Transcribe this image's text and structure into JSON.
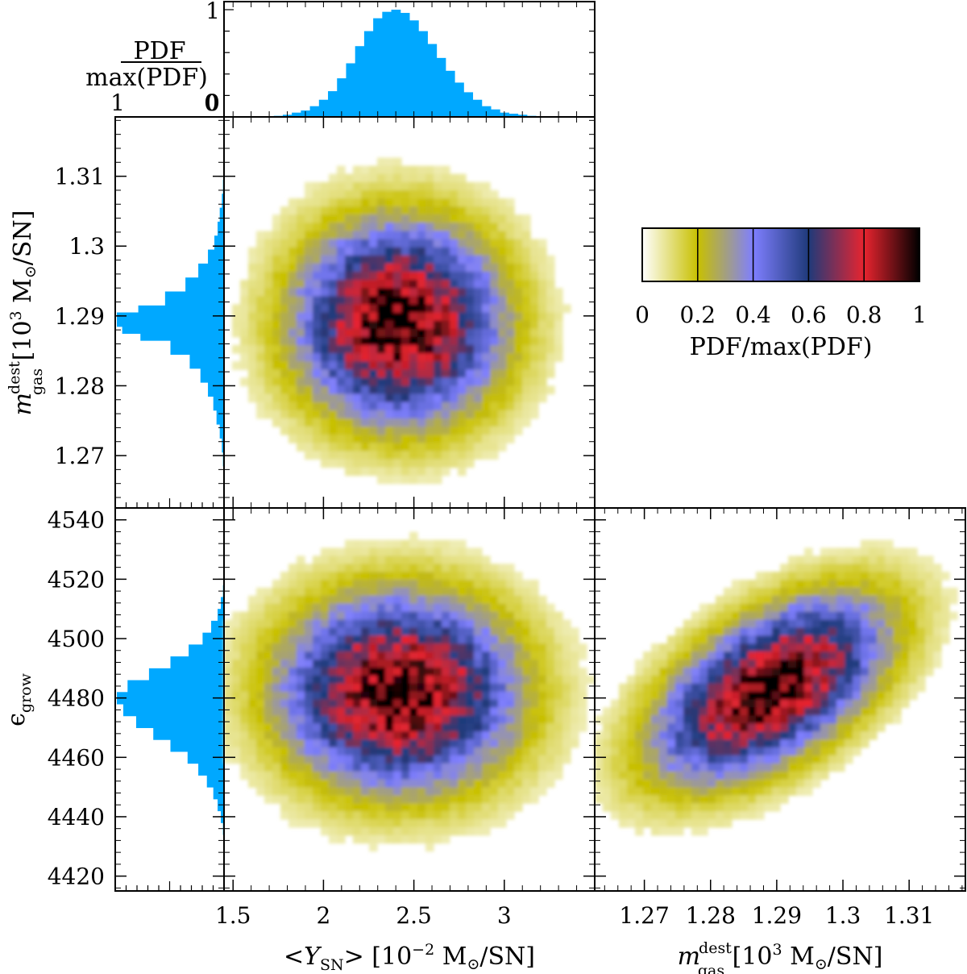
{
  "figure": {
    "colorbar": {
      "label": "PDF/max(PDF)",
      "ticks": [
        "0",
        "0.2",
        "0.4",
        "0.6",
        "0.8",
        "1"
      ],
      "stops": [
        "#ffffff",
        "#c8c000",
        "#7f7fff",
        "#1f3a7a",
        "#e8242f",
        "#000000"
      ]
    },
    "histogram_color": "#00a8ff",
    "labels": {
      "top_hist_y_num": "PDF",
      "top_hist_y_den": "max(PDF)",
      "top_hist_tick_1": "1",
      "top_hist_tick_0": "0",
      "top_hist_left_1": "1",
      "top_hist_left_0": "0",
      "mgas_axis_symbol": "m",
      "mgas_axis_sup": "dest",
      "mgas_axis_sub": "gas",
      "mgas_axis_units": " [10",
      "mgas_axis_units_sup": "3",
      "mgas_axis_units_tail": " M",
      "sun_symbol": "⊙",
      "per_sn": "/SN]",
      "eps_symbol": "ϵ",
      "eps_sub": "grow",
      "ysn_lt": "<",
      "ysn_symbol": "Y",
      "ysn_sub": "SN",
      "ysn_gt": ">",
      "ysn_units": " [10",
      "ysn_units_sup": "−2",
      "ysn_units_tail": " M"
    }
  },
  "chart_data": [
    {
      "type": "bar",
      "panel": "top-histogram",
      "variable": "<Y_SN>",
      "x_range": [
        1.45,
        3.5
      ],
      "ylim": [
        0,
        1
      ],
      "y_ticks": [
        "0",
        "1"
      ],
      "bin_centers": [
        1.75,
        1.8,
        1.85,
        1.9,
        1.95,
        2.0,
        2.05,
        2.1,
        2.15,
        2.2,
        2.25,
        2.3,
        2.35,
        2.4,
        2.45,
        2.5,
        2.55,
        2.6,
        2.65,
        2.7,
        2.75,
        2.8,
        2.85,
        2.9,
        2.95,
        3.0,
        3.05,
        3.1,
        3.15,
        3.2
      ],
      "values": [
        0.01,
        0.02,
        0.04,
        0.06,
        0.1,
        0.16,
        0.24,
        0.36,
        0.5,
        0.66,
        0.8,
        0.92,
        0.98,
        1.0,
        0.97,
        0.9,
        0.8,
        0.68,
        0.55,
        0.43,
        0.32,
        0.23,
        0.16,
        0.1,
        0.07,
        0.04,
        0.03,
        0.02,
        0.01,
        0.005
      ]
    },
    {
      "type": "bar",
      "panel": "left-histogram-mgas",
      "orientation": "horizontal",
      "variable": "m_gas^dest",
      "y_range": [
        1.2625,
        1.3185
      ],
      "x_reversed": true,
      "bin_centers": [
        1.2695,
        1.2715,
        1.2735,
        1.2755,
        1.2775,
        1.2795,
        1.2815,
        1.2835,
        1.2855,
        1.2875,
        1.2885,
        1.2895,
        1.2905,
        1.2925,
        1.2945,
        1.2965,
        1.2985,
        1.3005,
        1.3025,
        1.3045,
        1.3065,
        1.3085
      ],
      "values": [
        0.01,
        0.02,
        0.04,
        0.07,
        0.1,
        0.15,
        0.22,
        0.32,
        0.5,
        0.78,
        0.95,
        1.0,
        0.8,
        0.55,
        0.36,
        0.24,
        0.15,
        0.09,
        0.06,
        0.04,
        0.02,
        0.01
      ]
    },
    {
      "type": "bar",
      "panel": "left-histogram-eps",
      "orientation": "horizontal",
      "variable": "epsilon_grow",
      "y_range": [
        4415,
        4544
      ],
      "x_reversed": true,
      "bin_centers": [
        4436,
        4440,
        4444,
        4448,
        4452,
        4456,
        4460,
        4464,
        4468,
        4472,
        4476,
        4480,
        4484,
        4488,
        4492,
        4496,
        4500,
        4504,
        4508,
        4512,
        4516
      ],
      "values": [
        0.01,
        0.03,
        0.06,
        0.1,
        0.16,
        0.24,
        0.34,
        0.5,
        0.66,
        0.82,
        0.94,
        1.0,
        0.9,
        0.7,
        0.5,
        0.33,
        0.2,
        0.12,
        0.06,
        0.03,
        0.01
      ]
    },
    {
      "type": "heatmap",
      "panel": "mgas-vs-ysn",
      "xlabel": "<Y_SN> [10^-2 Msun/SN]",
      "ylabel": "m_gas^dest [10^3 Msun/SN]",
      "x_range": [
        1.45,
        3.5
      ],
      "y_range": [
        1.2625,
        1.3185
      ],
      "x_ticks": [
        "1.5",
        "2",
        "2.5",
        "3"
      ],
      "y_ticks": [
        "1.27",
        "1.28",
        "1.29",
        "1.3",
        "1.31"
      ],
      "peak": [
        2.42,
        1.289
      ],
      "sigma": [
        0.3,
        0.0075
      ],
      "levels": [
        0.05,
        0.2,
        0.4,
        0.6,
        0.8
      ]
    },
    {
      "type": "heatmap",
      "panel": "eps-vs-ysn",
      "xlabel": "<Y_SN> [10^-2 Msun/SN]",
      "ylabel": "epsilon_grow",
      "x_range": [
        1.45,
        3.5
      ],
      "y_range": [
        4415,
        4544
      ],
      "x_ticks": [
        "1.5",
        "2",
        "2.5",
        "3"
      ],
      "y_ticks": [
        "4420",
        "4440",
        "4460",
        "4480",
        "4500",
        "4520",
        "4540"
      ],
      "peak": [
        2.42,
        4482
      ],
      "sigma": [
        0.34,
        17
      ],
      "levels": [
        0.05,
        0.2,
        0.4,
        0.6,
        0.8
      ]
    },
    {
      "type": "heatmap",
      "panel": "eps-vs-mgas",
      "xlabel": "m_gas^dest [10^3 Msun/SN]",
      "ylabel": "epsilon_grow",
      "x_range": [
        1.2625,
        1.3185
      ],
      "y_range": [
        4415,
        4544
      ],
      "x_ticks": [
        "1.27",
        "1.28",
        "1.29",
        "1.3",
        "1.31"
      ],
      "peak": [
        1.289,
        4483
      ],
      "sigma": [
        0.009,
        16
      ],
      "correlation": 0.55,
      "levels": [
        0.05,
        0.2,
        0.4,
        0.6,
        0.8
      ]
    }
  ]
}
